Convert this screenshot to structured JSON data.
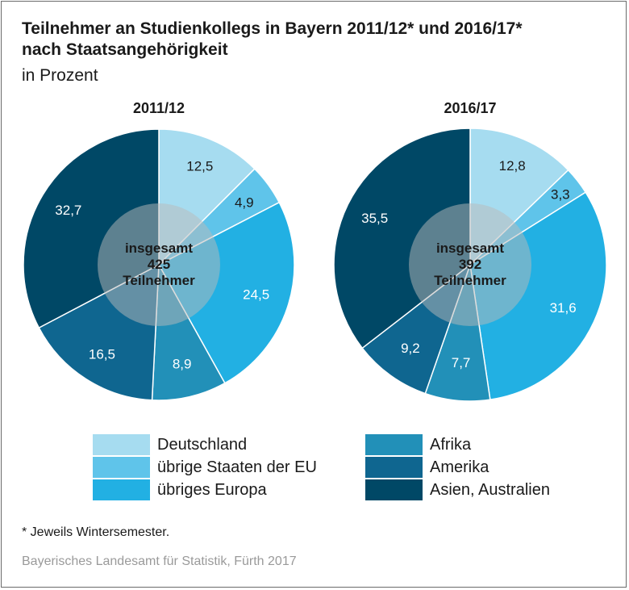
{
  "header": {
    "title_line1": "Teilnehmer an Studienkollegs in Bayern 2011/12* und 2016/17*",
    "title_line2": "nach Staatsangehörigkeit",
    "subtitle": "in Prozent"
  },
  "colors": {
    "Deutschland": "#a6dcf0",
    "übrige Staaten der EU": "#5fc4ea",
    "übriges Europa": "#22b0e3",
    "Afrika": "#2290b8",
    "Amerika": "#0f6690",
    "Asien, Australien": "#004866",
    "center_overlay": "#b9b9b9"
  },
  "chart_data": [
    {
      "type": "pie",
      "title": "2011/12",
      "center_text": [
        "insgesamt",
        "425",
        "Teilnehmer"
      ],
      "categories": [
        "Deutschland",
        "übrige Staaten der EU",
        "übriges Europa",
        "Afrika",
        "Amerika",
        "Asien, Australien"
      ],
      "values": [
        12.5,
        4.9,
        24.5,
        8.9,
        16.5,
        32.7
      ],
      "labels": [
        "12,5",
        "4,9",
        "24,5",
        "8,9",
        "16,5",
        "32,7"
      ]
    },
    {
      "type": "pie",
      "title": "2016/17",
      "center_text": [
        "insgesamt",
        "392",
        "Teilnehmer"
      ],
      "categories": [
        "Deutschland",
        "übrige Staaten der EU",
        "übriges Europa",
        "Afrika",
        "Amerika",
        "Asien, Australien"
      ],
      "values": [
        12.8,
        3.3,
        31.6,
        7.7,
        9.2,
        35.5
      ],
      "labels": [
        "12,8",
        "3,3",
        "31,6",
        "7,7",
        "9,2",
        "35,5"
      ]
    }
  ],
  "legend": {
    "left": [
      "Deutschland",
      "übrige Staaten der EU",
      "übriges Europa"
    ],
    "right": [
      "Afrika",
      "Amerika",
      "Asien, Australien"
    ]
  },
  "footnote": "* Jeweils Wintersemester.",
  "source": "Bayerisches Landesamt für Statistik, Fürth 2017"
}
